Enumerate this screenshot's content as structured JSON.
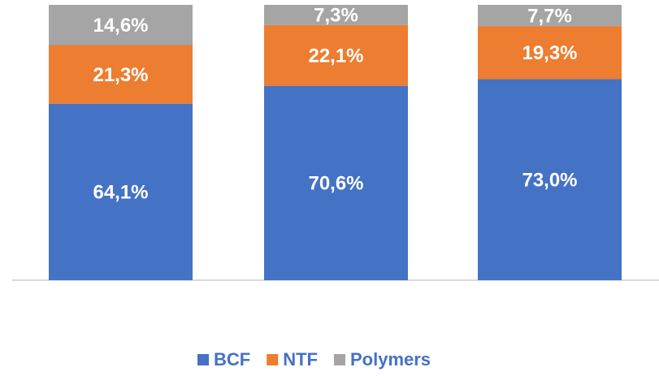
{
  "chart_data": {
    "type": "stacked_bar",
    "categories": [
      null,
      null,
      null
    ],
    "series": [
      {
        "name": "BCF",
        "color": "#4472c4",
        "values": [
          64.1,
          70.6,
          73.0
        ],
        "value_labels": [
          "64,1%",
          "70,6%",
          "73,0%"
        ]
      },
      {
        "name": "NTF",
        "color": "#ed7d31",
        "values": [
          21.3,
          22.1,
          19.3
        ],
        "value_labels": [
          "21,3%",
          "22,1%",
          "19,3%"
        ]
      },
      {
        "name": "Polymers",
        "color": "#a5a5a5",
        "values": [
          14.6,
          7.3,
          7.7
        ],
        "value_labels": [
          "14,6%",
          "7,3%",
          "7,7%"
        ]
      }
    ],
    "ylim": [
      0,
      100
    ]
  }
}
